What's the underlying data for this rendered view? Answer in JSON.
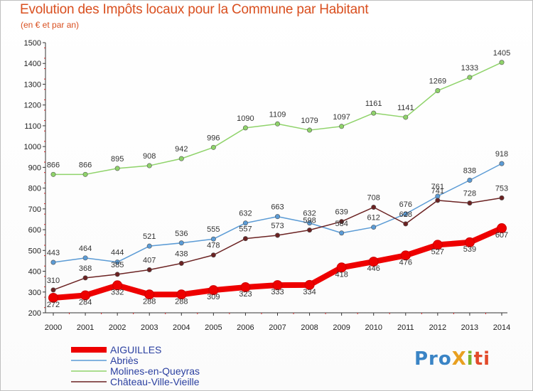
{
  "chart_data": {
    "type": "line",
    "title": "Evolution des Impôts locaux pour la Commune par Habitant",
    "subtitle": "(en € et par an)",
    "x": [
      "2000",
      "2001",
      "2002",
      "2003",
      "2004",
      "2005",
      "2006",
      "2007",
      "2008",
      "2009",
      "2010",
      "2011",
      "2012",
      "2013",
      "2014"
    ],
    "ylim": [
      200,
      1500
    ],
    "yticks": [
      200,
      300,
      400,
      500,
      600,
      700,
      800,
      900,
      1000,
      1100,
      1200,
      1300,
      1400,
      1500
    ],
    "grid": false,
    "legend_position": "bottom-left",
    "series": [
      {
        "name": "AIGUILLES",
        "color": "#ee0000",
        "values": [
          272,
          284,
          332,
          288,
          288,
          309,
          323,
          333,
          334,
          418,
          446,
          476,
          527,
          539,
          607
        ]
      },
      {
        "name": "Abriès",
        "color": "#5b9bd5",
        "values": [
          443,
          464,
          444,
          521,
          536,
          555,
          632,
          663,
          632,
          584,
          612,
          676,
          761,
          838,
          918
        ]
      },
      {
        "name": "Molines-en-Queyras",
        "color": "#8fd36a",
        "values": [
          866,
          866,
          895,
          908,
          942,
          996,
          1090,
          1109,
          1079,
          1097,
          1161,
          1141,
          1269,
          1333,
          1405
        ]
      },
      {
        "name": "Château-Ville-Vieille",
        "color": "#6b2222",
        "values": [
          310,
          368,
          385,
          407,
          438,
          478,
          557,
          573,
          598,
          639,
          708,
          628,
          741,
          728,
          753
        ]
      }
    ]
  },
  "logo": {
    "text": "ProXiti",
    "parts": [
      "Pro",
      "X",
      "i",
      "ti"
    ]
  }
}
